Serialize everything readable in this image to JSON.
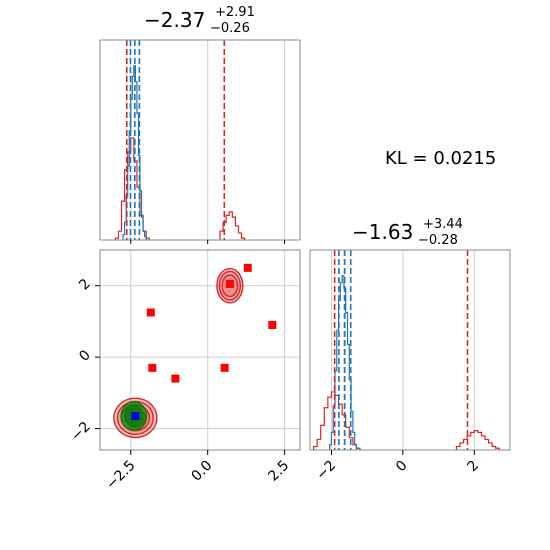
{
  "chart_data": {
    "type": "corner",
    "parameters": [
      {
        "median_label": "−2.37",
        "upper_error": "+2.91",
        "lower_error": "−0.26",
        "range": [
          -3.5,
          3.0
        ],
        "ticks": [
          -2.5,
          0.0,
          2.5
        ],
        "tick_labels": [
          "−2.5",
          "0.0",
          "2.5"
        ]
      },
      {
        "median_label": "−1.63",
        "upper_error": "+3.44",
        "lower_error": "−0.28",
        "range": [
          -2.6,
          3.0
        ],
        "ticks": [
          -2,
          0,
          2
        ],
        "tick_labels": [
          "−2",
          "0",
          "2"
        ]
      }
    ],
    "annotation": "KL = 0.0215",
    "grid": true,
    "colors": {
      "reference": "#d62728",
      "approx": "#1f77b4",
      "truth": "#ff0000",
      "inner": "#008000",
      "marker_blue": "#0000ff"
    },
    "reference_quantile_lines": {
      "p1": [
        -2.63,
        -2.37,
        0.54
      ],
      "p2": [
        -1.91,
        -1.63,
        1.81
      ]
    },
    "approx_quantile_lines": {
      "p1": [
        -2.51,
        -2.37,
        -2.22
      ],
      "p2": [
        -1.79,
        -1.63,
        -1.46
      ]
    },
    "hist_p1_reference": {
      "bins": [
        [
          -3.0,
          -2.9,
          0.01
        ],
        [
          -2.9,
          -2.8,
          0.05
        ],
        [
          -2.8,
          -2.7,
          0.22
        ],
        [
          -2.7,
          -2.6,
          0.4
        ],
        [
          -2.6,
          -2.5,
          0.5
        ],
        [
          -2.5,
          -2.4,
          0.58
        ],
        [
          -2.4,
          -2.3,
          0.45
        ],
        [
          -2.3,
          -2.2,
          0.3
        ],
        [
          -2.2,
          -2.1,
          0.14
        ],
        [
          -2.1,
          -2.0,
          0.05
        ],
        [
          -2.0,
          -1.9,
          0.01
        ],
        [
          0.4,
          0.5,
          0.05
        ],
        [
          0.5,
          0.6,
          0.1
        ],
        [
          0.6,
          0.7,
          0.14
        ],
        [
          0.7,
          0.8,
          0.16
        ],
        [
          0.8,
          0.9,
          0.13
        ],
        [
          0.9,
          1.0,
          0.08
        ],
        [
          1.0,
          1.1,
          0.04
        ],
        [
          1.1,
          1.2,
          0.01
        ]
      ]
    },
    "hist_p1_approx": {
      "bins": [
        [
          -2.75,
          -2.7,
          0.03
        ],
        [
          -2.7,
          -2.65,
          0.1
        ],
        [
          -2.65,
          -2.6,
          0.25
        ],
        [
          -2.6,
          -2.55,
          0.42
        ],
        [
          -2.55,
          -2.5,
          0.62
        ],
        [
          -2.5,
          -2.45,
          0.8
        ],
        [
          -2.45,
          -2.4,
          0.93
        ],
        [
          -2.4,
          -2.35,
          0.99
        ],
        [
          -2.35,
          -2.3,
          0.9
        ],
        [
          -2.3,
          -2.25,
          0.72
        ],
        [
          -2.25,
          -2.2,
          0.48
        ],
        [
          -2.2,
          -2.15,
          0.28
        ],
        [
          -2.15,
          -2.1,
          0.13
        ],
        [
          -2.1,
          -2.05,
          0.05
        ],
        [
          -2.05,
          -2.0,
          0.02
        ]
      ]
    },
    "hist_p2_reference": {
      "bins": [
        [
          -2.5,
          -2.4,
          0.02
        ],
        [
          -2.4,
          -2.3,
          0.06
        ],
        [
          -2.3,
          -2.2,
          0.14
        ],
        [
          -2.2,
          -2.1,
          0.24
        ],
        [
          -2.1,
          -2.0,
          0.3
        ],
        [
          -2.0,
          -1.9,
          0.33
        ],
        [
          -1.9,
          -1.8,
          0.31
        ],
        [
          -1.8,
          -1.7,
          0.26
        ],
        [
          -1.7,
          -1.6,
          0.2
        ],
        [
          -1.6,
          -1.5,
          0.13
        ],
        [
          -1.5,
          -1.4,
          0.07
        ],
        [
          -1.4,
          -1.3,
          0.03
        ],
        [
          -1.3,
          -1.2,
          0.01
        ],
        [
          1.5,
          1.6,
          0.02
        ],
        [
          1.6,
          1.7,
          0.04
        ],
        [
          1.7,
          1.8,
          0.06
        ],
        [
          1.8,
          1.9,
          0.08
        ],
        [
          1.9,
          2.0,
          0.1
        ],
        [
          2.0,
          2.1,
          0.11
        ],
        [
          2.1,
          2.2,
          0.1
        ],
        [
          2.2,
          2.3,
          0.08
        ],
        [
          2.3,
          2.4,
          0.06
        ],
        [
          2.4,
          2.5,
          0.04
        ],
        [
          2.5,
          2.6,
          0.02
        ],
        [
          2.6,
          2.7,
          0.01
        ]
      ]
    },
    "hist_p2_approx": {
      "bins": [
        [
          -2.05,
          -2.0,
          0.03
        ],
        [
          -2.0,
          -1.95,
          0.1
        ],
        [
          -1.95,
          -1.9,
          0.25
        ],
        [
          -1.9,
          -1.85,
          0.45
        ],
        [
          -1.85,
          -1.8,
          0.68
        ],
        [
          -1.8,
          -1.75,
          0.85
        ],
        [
          -1.75,
          -1.7,
          0.95
        ],
        [
          -1.7,
          -1.65,
          0.99
        ],
        [
          -1.65,
          -1.6,
          0.92
        ],
        [
          -1.6,
          -1.55,
          0.78
        ],
        [
          -1.55,
          -1.5,
          0.6
        ],
        [
          -1.5,
          -1.45,
          0.4
        ],
        [
          -1.45,
          -1.4,
          0.22
        ],
        [
          -1.4,
          -1.35,
          0.1
        ],
        [
          -1.35,
          -1.3,
          0.03
        ]
      ]
    },
    "contours_reference": [
      {
        "cx": -2.35,
        "cy": -1.7,
        "rx": [
          0.7,
          0.58,
          0.46,
          0.32
        ],
        "ry": [
          0.55,
          0.46,
          0.36,
          0.26
        ]
      },
      {
        "cx": 0.72,
        "cy": 2.0,
        "rx": [
          0.42,
          0.34,
          0.25
        ],
        "ry": [
          0.48,
          0.4,
          0.3
        ]
      }
    ],
    "contours_approx": [
      {
        "cx": -2.4,
        "cy": -1.65,
        "rx": [
          0.42,
          0.3
        ],
        "ry": [
          0.4,
          0.28
        ]
      }
    ],
    "scatter_red_squares": {
      "x": [
        1.3,
        2.1,
        -1.85,
        -1.8,
        -1.05,
        0.55,
        0.72
      ],
      "y": [
        2.5,
        0.9,
        1.25,
        -0.3,
        -0.6,
        -0.3,
        2.05
      ]
    },
    "scatter_blue_square": {
      "x": [
        -2.35
      ],
      "y": [
        -1.65
      ]
    }
  }
}
